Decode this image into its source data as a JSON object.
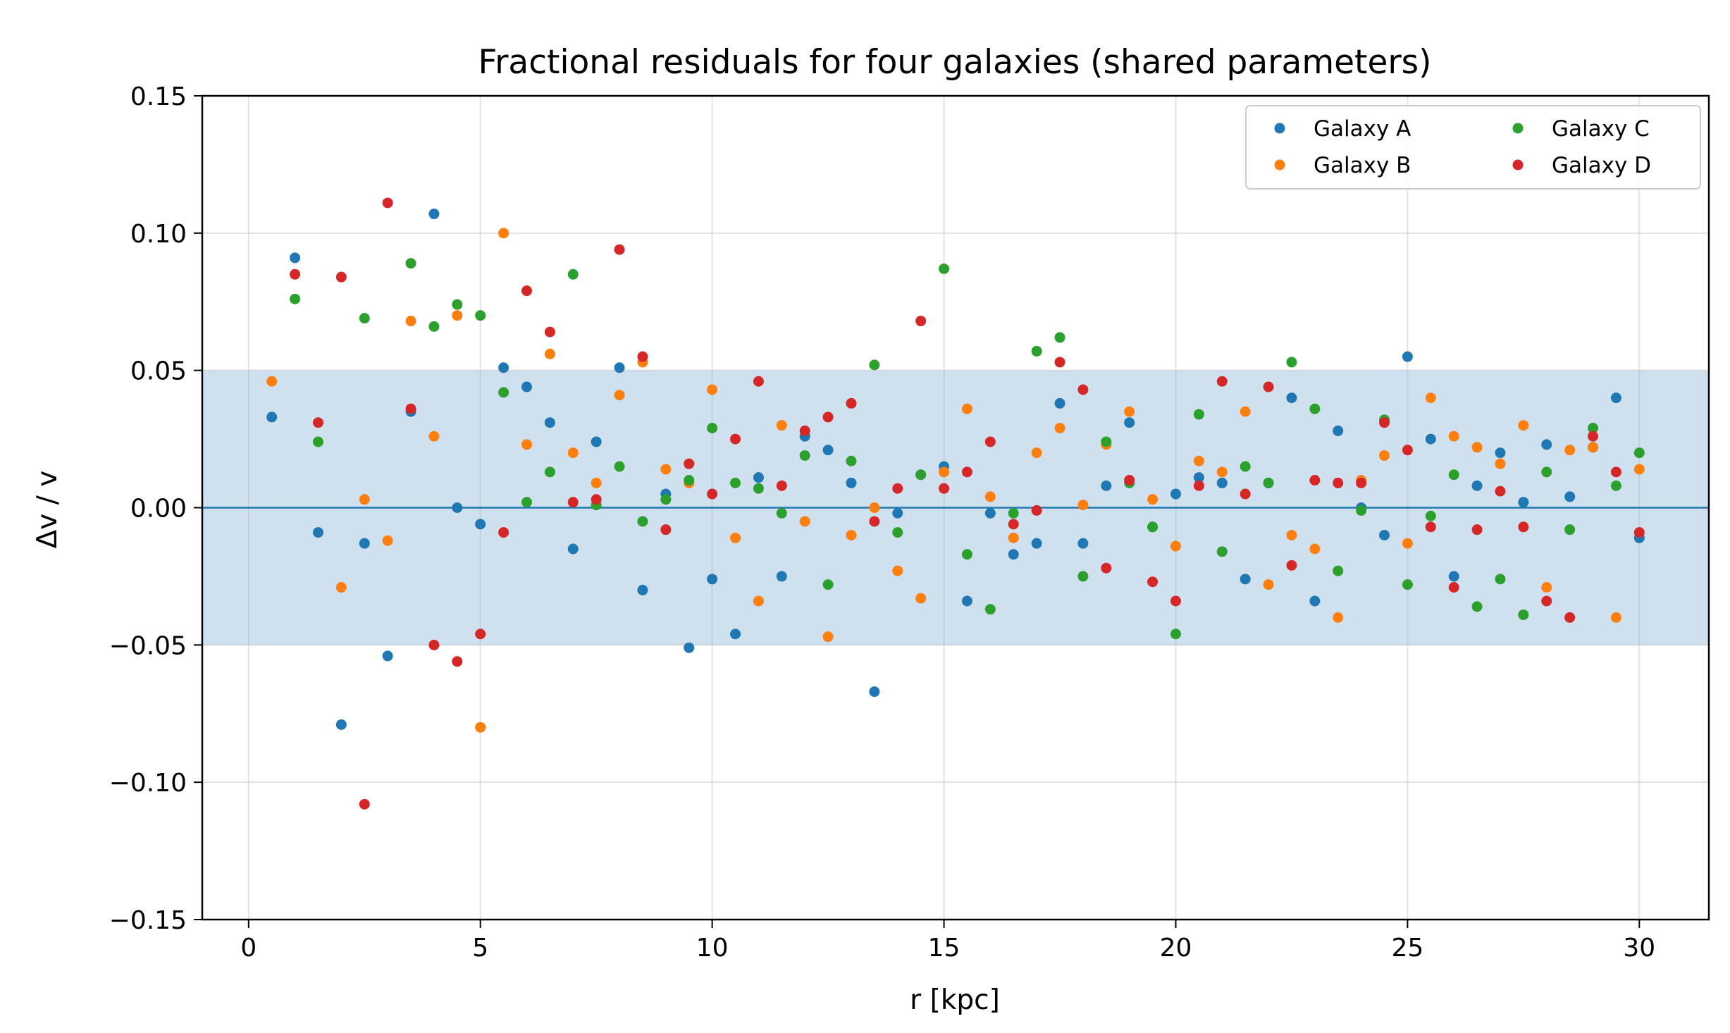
{
  "chart_data": {
    "type": "scatter",
    "title": "Fractional residuals for four galaxies (shared parameters)",
    "xlabel": "r [kpc]",
    "ylabel": "Δv / v",
    "xlim": [
      -1,
      31.5
    ],
    "ylim": [
      -0.15,
      0.15
    ],
    "xticks": [
      0,
      5,
      10,
      15,
      20,
      25,
      30
    ],
    "xtick_labels": [
      "0",
      "5",
      "10",
      "15",
      "20",
      "25",
      "30"
    ],
    "yticks": [
      -0.15,
      -0.1,
      -0.05,
      0.0,
      0.05,
      0.1,
      0.15
    ],
    "ytick_labels": [
      "−0.15",
      "−0.10",
      "−0.05",
      "0.00",
      "0.05",
      "0.10",
      "0.15"
    ],
    "grid": true,
    "band": {
      "from": -0.05,
      "to": 0.05,
      "color": "#cfe0ee"
    },
    "reference_line": {
      "y": 0,
      "color": "#1f77b4"
    },
    "legend_position": "upper-right",
    "x": [
      0.5,
      1.0,
      1.5,
      2.0,
      2.5,
      3.0,
      3.5,
      4.0,
      4.5,
      5.0,
      5.5,
      6.0,
      6.5,
      7.0,
      7.5,
      8.0,
      8.5,
      9.0,
      9.5,
      10.0,
      10.5,
      11.0,
      11.5,
      12.0,
      12.5,
      13.0,
      13.5,
      14.0,
      14.5,
      15.0,
      15.5,
      16.0,
      16.5,
      17.0,
      17.5,
      18.0,
      18.5,
      19.0,
      19.5,
      20.0,
      20.5,
      21.0,
      21.5,
      22.0,
      22.5,
      23.0,
      23.5,
      24.0,
      24.5,
      25.0,
      25.5,
      26.0,
      26.5,
      27.0,
      27.5,
      28.0,
      28.5,
      29.0,
      29.5,
      30.0
    ],
    "series": [
      {
        "name": "Galaxy A",
        "color": "#1f77b4",
        "values": [
          0.033,
          0.091,
          -0.009,
          -0.079,
          -0.013,
          -0.054,
          0.035,
          0.107,
          0.0,
          -0.006,
          0.051,
          0.044,
          0.031,
          -0.015,
          0.024,
          0.051,
          -0.03,
          0.005,
          -0.051,
          -0.026,
          -0.046,
          0.011,
          -0.025,
          0.026,
          0.021,
          0.009,
          -0.067,
          -0.002,
          0.012,
          0.015,
          -0.034,
          -0.002,
          -0.017,
          -0.013,
          0.038,
          -0.013,
          0.008,
          0.031,
          -0.007,
          0.005,
          0.011,
          0.009,
          -0.026,
          0.009,
          0.04,
          -0.034,
          0.028,
          0.0,
          -0.01,
          0.055,
          0.025,
          -0.025,
          0.008,
          0.02,
          0.002,
          0.023,
          0.004,
          0.022,
          0.04,
          -0.011
        ]
      },
      {
        "name": "Galaxy B",
        "color": "#ff7f0e",
        "values": [
          0.046,
          null,
          null,
          -0.029,
          0.003,
          -0.012,
          0.068,
          0.026,
          0.07,
          -0.08,
          0.1,
          0.023,
          0.056,
          0.02,
          0.009,
          0.041,
          0.053,
          0.014,
          0.009,
          0.043,
          -0.011,
          -0.034,
          0.03,
          -0.005,
          -0.047,
          -0.01,
          0.0,
          -0.023,
          -0.033,
          0.013,
          0.036,
          0.004,
          -0.011,
          0.02,
          0.029,
          0.001,
          0.023,
          0.035,
          0.003,
          -0.014,
          0.017,
          0.013,
          0.035,
          -0.028,
          -0.01,
          -0.015,
          -0.04,
          0.01,
          0.019,
          -0.013,
          0.04,
          0.026,
          0.022,
          0.016,
          0.03,
          -0.029,
          0.021,
          0.022,
          -0.04,
          0.014
        ]
      },
      {
        "name": "Galaxy C",
        "color": "#2ca02c",
        "values": [
          null,
          0.076,
          0.024,
          null,
          0.069,
          null,
          0.089,
          0.066,
          0.074,
          0.07,
          0.042,
          0.002,
          0.013,
          0.085,
          0.001,
          0.015,
          -0.005,
          0.003,
          0.01,
          0.029,
          0.009,
          0.007,
          -0.002,
          0.019,
          -0.028,
          0.017,
          0.052,
          -0.009,
          0.012,
          0.087,
          -0.017,
          -0.037,
          -0.002,
          0.057,
          0.062,
          -0.025,
          0.024,
          0.009,
          -0.007,
          -0.046,
          0.034,
          -0.016,
          0.015,
          0.009,
          0.053,
          0.036,
          -0.023,
          -0.001,
          0.032,
          -0.028,
          -0.003,
          0.012,
          -0.036,
          -0.026,
          -0.039,
          0.013,
          -0.008,
          0.029,
          0.008,
          0.02
        ]
      },
      {
        "name": "Galaxy D",
        "color": "#d62728",
        "values": [
          null,
          0.085,
          0.031,
          0.084,
          -0.108,
          0.111,
          0.036,
          -0.05,
          -0.056,
          -0.046,
          -0.009,
          0.079,
          0.064,
          0.002,
          0.003,
          0.094,
          0.055,
          -0.008,
          0.016,
          0.005,
          0.025,
          0.046,
          0.008,
          0.028,
          0.033,
          0.038,
          -0.005,
          0.007,
          0.068,
          0.007,
          0.013,
          0.024,
          -0.006,
          -0.001,
          0.053,
          0.043,
          -0.022,
          0.01,
          -0.027,
          -0.034,
          0.008,
          0.046,
          0.005,
          0.044,
          -0.021,
          0.01,
          0.009,
          0.009,
          0.031,
          0.021,
          -0.007,
          -0.029,
          -0.008,
          0.006,
          -0.007,
          -0.034,
          -0.04,
          0.026,
          0.013,
          -0.009
        ]
      }
    ]
  }
}
